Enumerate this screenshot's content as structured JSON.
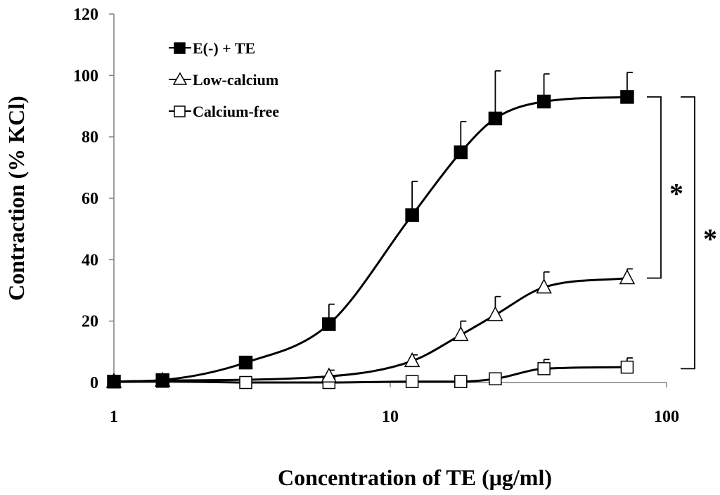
{
  "chart_data": {
    "type": "line",
    "title": "",
    "xlabel": "Concentration of TE (μg/ml)",
    "ylabel": "Contraction (% KCl)",
    "xscale": "log",
    "xlim": [
      1,
      100
    ],
    "ylim": [
      0,
      120
    ],
    "xticks": [
      1,
      10,
      100
    ],
    "xtick_labels": [
      "1",
      "10",
      "100"
    ],
    "yticks": [
      0,
      20,
      40,
      60,
      80,
      100,
      120
    ],
    "ytick_labels": [
      "0",
      "20",
      "40",
      "60",
      "80",
      "100",
      "120"
    ],
    "legend_position": "top-left",
    "series": [
      {
        "name": "E(-) + TE",
        "marker": "filled-square",
        "x": [
          1,
          1.5,
          3,
          6,
          12,
          18,
          24,
          36,
          72
        ],
        "y": [
          0.3,
          0.8,
          6.5,
          19,
          54.5,
          75,
          86,
          91.5,
          93
        ],
        "err": [
          0,
          0,
          1.5,
          6.5,
          11,
          10,
          15.5,
          9,
          8
        ]
      },
      {
        "name": "Low-calcium",
        "marker": "open-triangle",
        "x": [
          1,
          1.5,
          6,
          12,
          18,
          24,
          36,
          72
        ],
        "y": [
          0.3,
          0.6,
          2,
          7,
          15.5,
          22,
          31,
          34
        ],
        "err": [
          0,
          0,
          2,
          2,
          4.5,
          6,
          5,
          3
        ]
      },
      {
        "name": "Calcium-free",
        "marker": "open-square",
        "x": [
          1,
          1.5,
          3,
          6,
          12,
          18,
          24,
          36,
          72
        ],
        "y": [
          0.2,
          0.4,
          0,
          0,
          0.3,
          0.3,
          1.2,
          4.5,
          5
        ],
        "err": [
          0,
          0,
          0,
          0,
          0,
          0,
          0,
          3,
          3
        ]
      }
    ],
    "annotations": [
      {
        "text": "*",
        "between": [
          "E(-) + TE",
          "Low-calcium"
        ],
        "from_y": 93,
        "to_y": 34
      },
      {
        "text": "*",
        "between": [
          "E(-) + TE",
          "Calcium-free"
        ],
        "from_y": 93,
        "to_y": 4.5
      }
    ]
  }
}
